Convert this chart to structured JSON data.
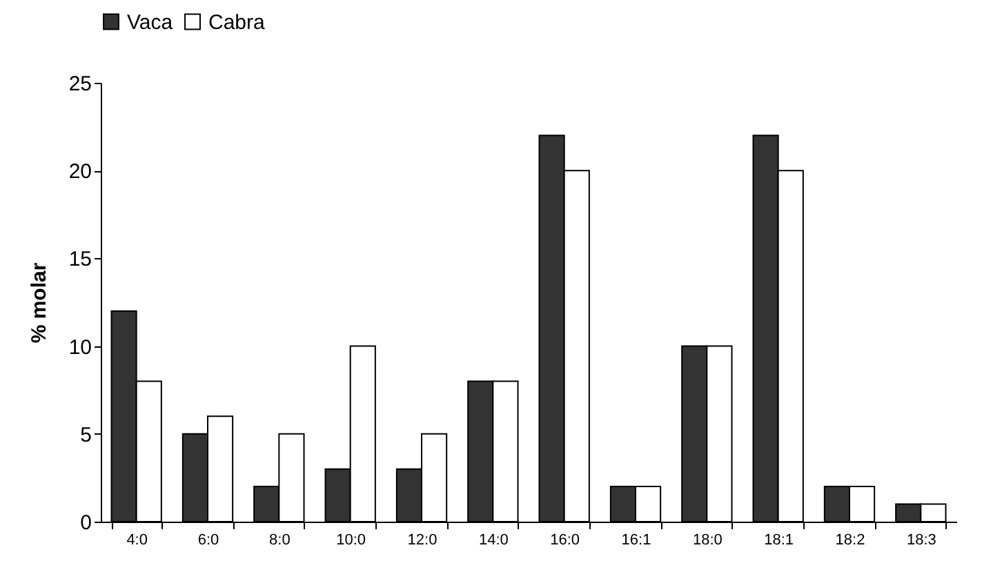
{
  "chart_data": {
    "type": "bar",
    "ylabel": "% molar",
    "categories": [
      "4:0",
      "6:0",
      "8:0",
      "10:0",
      "12:0",
      "14:0",
      "16:0",
      "16:1",
      "18:0",
      "18:1",
      "18:2",
      "18:3"
    ],
    "series": [
      {
        "name": "Vaca",
        "color": "#333333",
        "values": [
          12,
          5,
          2,
          3,
          3,
          8,
          22,
          2,
          10,
          22,
          2,
          1
        ]
      },
      {
        "name": "Cabra",
        "color": "#ffffff",
        "values": [
          8,
          6,
          5,
          10,
          5,
          8,
          20,
          2,
          10,
          20,
          2,
          1
        ]
      }
    ],
    "ylim": [
      0,
      25
    ],
    "yticks": [
      0,
      5,
      10,
      15,
      20,
      25
    ],
    "grid": false,
    "legend": "top"
  }
}
